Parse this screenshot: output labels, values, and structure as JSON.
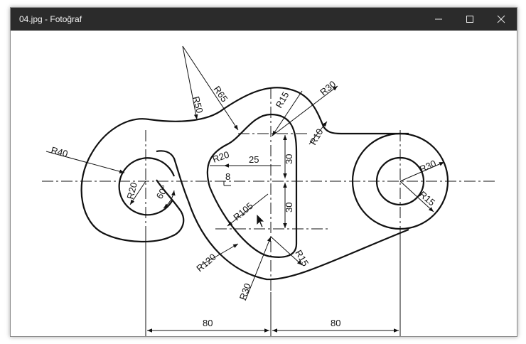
{
  "window": {
    "title": "04.jpg - Fotoğraf",
    "controls": [
      "minimize-icon",
      "maximize-icon",
      "close-icon"
    ]
  },
  "drawing": {
    "labels": {
      "r50": "R50",
      "r65": "R65",
      "r15_top": "R15",
      "r30_top": "R30",
      "r10": "R10",
      "r40": "R40",
      "r20_left": "R20",
      "angle_60": "60°",
      "r20_slot": "R20",
      "dim_25": "25",
      "dim_8": "8",
      "dim_30_upper": "30",
      "dim_30_lower": "30",
      "r105": "R105",
      "r120": "R120",
      "r15_bottom": "R15",
      "r30_bottom": "R30",
      "r30_right": "R30",
      "r15_right": "R15",
      "dim_80_left": "80",
      "dim_80_right": "80"
    }
  },
  "colors": {
    "titlebar": "#2b2b2b",
    "line": "#111111"
  }
}
